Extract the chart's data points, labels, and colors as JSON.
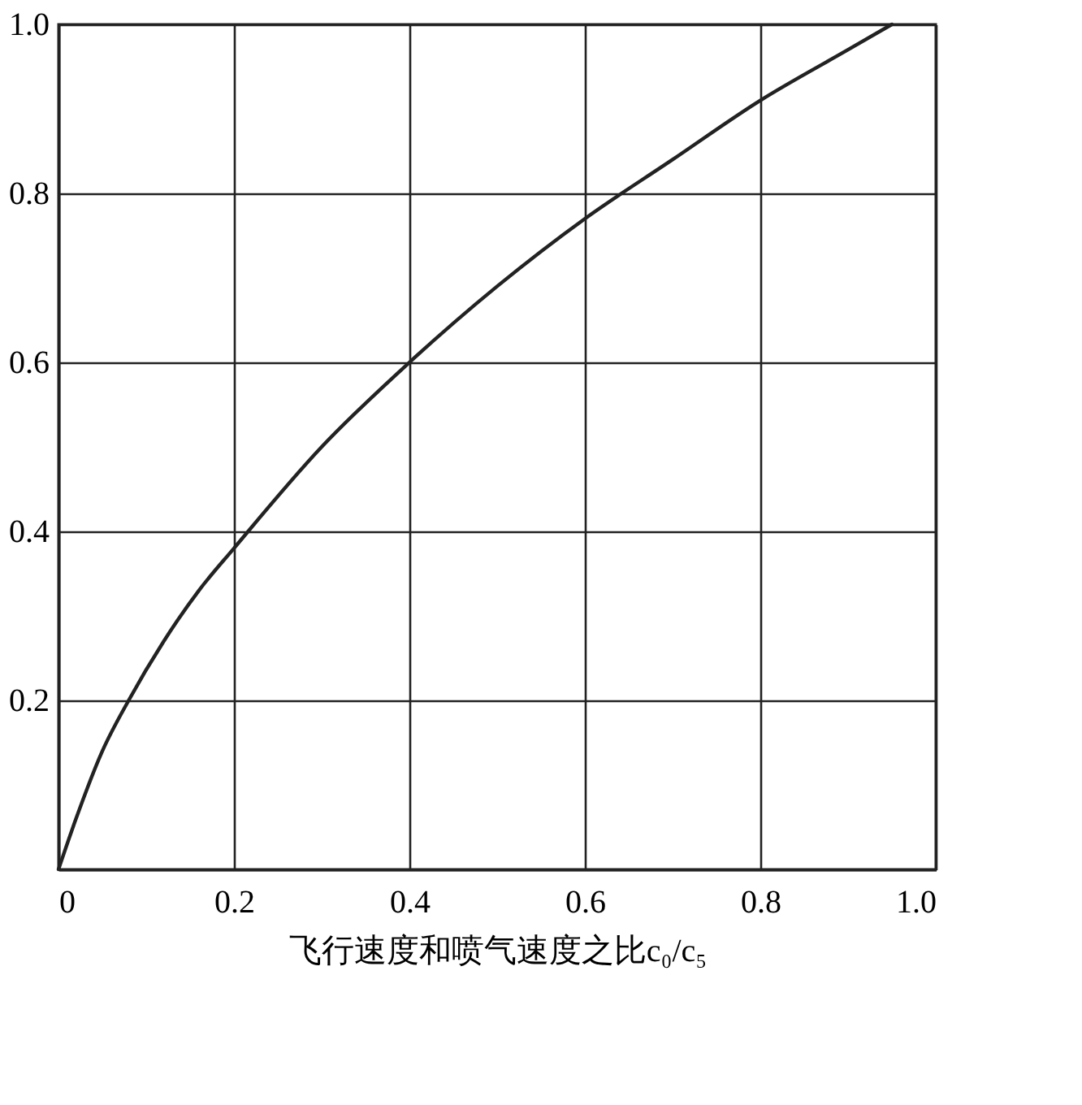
{
  "chart_data": {
    "type": "line",
    "xlabel": "飞行速度和喷气速度之比c₀/c₅",
    "x": [
      0,
      0.02,
      0.05,
      0.08,
      0.12,
      0.16,
      0.2,
      0.3,
      0.4,
      0.5,
      0.6,
      0.7,
      0.8,
      0.9,
      0.95
    ],
    "series": [
      {
        "color": "#222222",
        "values": [
          0,
          0.06,
          0.14,
          0.2,
          0.27,
          0.33,
          0.38,
          0.5,
          0.6,
          0.69,
          0.77,
          0.84,
          0.91,
          0.97,
          1.0
        ]
      }
    ],
    "xlim": [
      0,
      1
    ],
    "ylim": [
      0,
      1
    ],
    "xticks": [
      0,
      0.2,
      0.4,
      0.6,
      0.8,
      {
        "value": 1,
        "label": "1.0"
      }
    ],
    "yticks": [
      {
        "value": 0,
        "label": null
      },
      0.2,
      0.4,
      0.6,
      0.8,
      {
        "value": 1,
        "label": "1.0"
      }
    ],
    "grid": true,
    "marker": "none",
    "line_style": "solid"
  }
}
